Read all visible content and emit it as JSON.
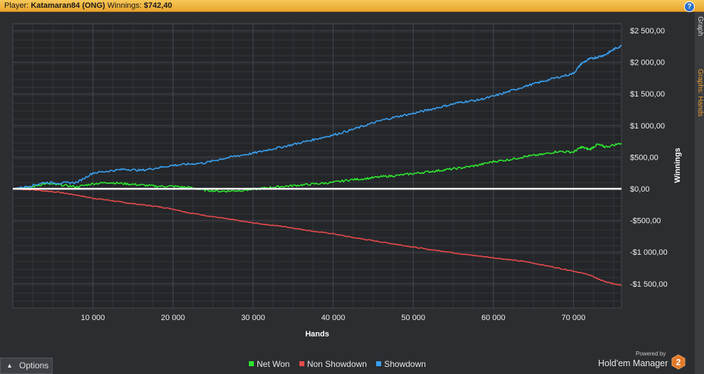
{
  "header": {
    "player_label": "Player:",
    "player_name": "Katamaran84 (ONG)",
    "winnings_label": "Winnings:",
    "winnings_value": "$742,40",
    "help_glyph": "?"
  },
  "side_tabs": [
    "Graph",
    "Graphs: Hands"
  ],
  "chart_data": {
    "type": "line",
    "xlabel": "Hands",
    "ylabel": "Winnings",
    "xlim": [
      0,
      76000
    ],
    "ylim": [
      -1900000,
      2800000
    ],
    "x_ticks": [
      10000,
      20000,
      30000,
      40000,
      50000,
      60000,
      70000
    ],
    "x_tick_labels": [
      "10 000",
      "20 000",
      "30 000",
      "40 000",
      "50 000",
      "60 000",
      "70 000"
    ],
    "y_ticks": [
      2500,
      2000,
      1500,
      1000,
      500,
      0,
      -500,
      -1000,
      -1500
    ],
    "y_tick_labels": [
      "$2 500,00",
      "$2 000,00",
      "$1 500,00",
      "$1 000,00",
      "$500,00",
      "$0,00",
      "-$500,00",
      "-$1 000,00",
      "-$1 500,00"
    ],
    "grid": true,
    "legend_position": "bottom",
    "series": [
      {
        "name": "Net Won",
        "color": "#2ee62e",
        "x": [
          0,
          2000,
          4000,
          6000,
          8000,
          10000,
          12000,
          14000,
          16000,
          18000,
          20000,
          22000,
          24000,
          26000,
          28000,
          30000,
          32000,
          34000,
          36000,
          38000,
          40000,
          42000,
          44000,
          46000,
          48000,
          50000,
          52000,
          54000,
          56000,
          58000,
          60000,
          62000,
          64000,
          66000,
          68000,
          70000,
          71000,
          72000,
          73000,
          74000,
          76000
        ],
        "values": [
          0,
          20,
          80,
          60,
          30,
          80,
          100,
          80,
          60,
          40,
          40,
          20,
          -20,
          -40,
          -30,
          -10,
          20,
          40,
          60,
          80,
          100,
          140,
          160,
          190,
          210,
          240,
          270,
          300,
          330,
          370,
          430,
          460,
          510,
          540,
          590,
          580,
          660,
          620,
          700,
          660,
          720
        ]
      },
      {
        "name": "Non Showdown",
        "color": "#e84a4a",
        "x": [
          0,
          3000,
          6000,
          8000,
          10000,
          12000,
          14000,
          16000,
          18000,
          20000,
          22000,
          24000,
          26000,
          28000,
          30000,
          32000,
          34000,
          36000,
          38000,
          40000,
          42000,
          44000,
          46000,
          48000,
          50000,
          52000,
          54000,
          56000,
          58000,
          60000,
          62000,
          64000,
          66000,
          68000,
          70000,
          72000,
          73000,
          74000,
          75000,
          76000
        ],
        "values": [
          0,
          -20,
          -60,
          -100,
          -150,
          -180,
          -220,
          -250,
          -280,
          -320,
          -380,
          -420,
          -460,
          -500,
          -540,
          -570,
          -600,
          -640,
          -680,
          -710,
          -760,
          -800,
          -840,
          -880,
          -920,
          -960,
          -990,
          -1030,
          -1060,
          -1090,
          -1120,
          -1150,
          -1200,
          -1250,
          -1300,
          -1360,
          -1420,
          -1470,
          -1500,
          -1520
        ]
      },
      {
        "name": "Showdown",
        "color": "#3aa0f0",
        "x": [
          0,
          2000,
          4000,
          6000,
          8000,
          10000,
          12000,
          14000,
          16000,
          18000,
          20000,
          22000,
          24000,
          26000,
          28000,
          30000,
          32000,
          34000,
          36000,
          38000,
          40000,
          42000,
          44000,
          46000,
          48000,
          50000,
          52000,
          54000,
          56000,
          58000,
          60000,
          62000,
          64000,
          66000,
          68000,
          70000,
          71000,
          72000,
          73000,
          74000,
          75000,
          76000
        ],
        "values": [
          0,
          40,
          100,
          90,
          100,
          250,
          280,
          310,
          290,
          330,
          370,
          390,
          410,
          470,
          520,
          560,
          620,
          670,
          730,
          790,
          850,
          920,
          1000,
          1080,
          1140,
          1190,
          1250,
          1310,
          1370,
          1400,
          1460,
          1540,
          1620,
          1690,
          1760,
          1820,
          1980,
          2050,
          2080,
          2120,
          2200,
          2260
        ]
      }
    ]
  },
  "footer": {
    "options_label": "Options",
    "powered_by": "Powered by",
    "brand_name": "Hold'em Manager",
    "brand_logo_text": "2"
  }
}
